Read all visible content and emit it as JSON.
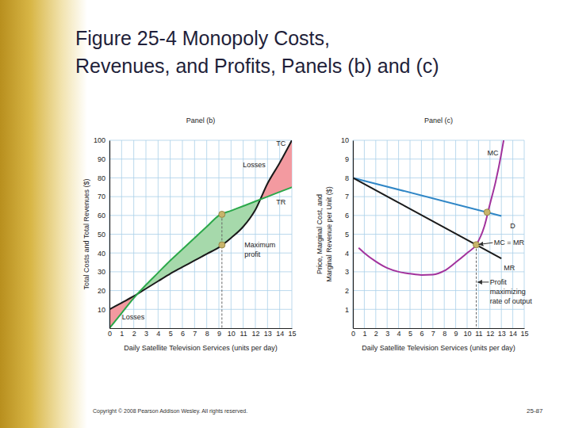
{
  "slide": {
    "title": [
      "Figure 25-4  Monopoly Costs,",
      "Revenues, and Profits, Panels (b) and (c)"
    ],
    "copyright": "Copyright © 2008 Pearson Addison Wesley. All rights reserved.",
    "page": "25-87"
  },
  "chart_data": [
    {
      "type": "area",
      "title": "Panel (b)",
      "xlabel": "Daily Satellite Television Services (units per day)",
      "ylabel": [
        "Total Costs and Total Revenues ($)"
      ],
      "x": [
        0,
        1,
        2,
        3,
        4,
        5,
        6,
        7,
        8,
        9,
        10,
        11,
        12,
        13,
        14,
        15
      ],
      "xlim": [
        0,
        15
      ],
      "xticks": [
        0,
        1,
        2,
        3,
        4,
        5,
        6,
        7,
        8,
        9,
        10,
        11,
        12,
        13,
        14,
        15
      ],
      "ylim": [
        0,
        100
      ],
      "yticks": [
        10,
        20,
        30,
        40,
        50,
        60,
        70,
        80,
        90,
        100
      ],
      "grid": true,
      "series": [
        {
          "name": "TC",
          "color": "#1a1a1a",
          "values": [
            10,
            13.5,
            17,
            21,
            25,
            29,
            32.5,
            36,
            39.5,
            43,
            48,
            54,
            63,
            77,
            88,
            100
          ]
        },
        {
          "name": "TR",
          "color": "#2ba84a",
          "values": [
            0,
            8,
            16,
            23,
            29.5,
            36,
            42,
            48,
            54,
            60,
            62.5,
            65,
            67.5,
            70,
            72.5,
            75
          ]
        }
      ],
      "highlight_points": {
        "x": [
          9.25,
          9.25
        ],
        "values": [
          60.6,
          44.3
        ],
        "color": "#c8b46a"
      },
      "annotations": [
        {
          "lines": [
            "Losses"
          ]
        },
        {
          "lines": [
            "Maximum",
            "profit"
          ]
        },
        {
          "lines": [
            "Losses"
          ]
        }
      ]
    },
    {
      "type": "line",
      "title": "Panel (c)",
      "xlabel": "Daily Satellite Television Services (units per day)",
      "ylabel": [
        "Price, Marginal Cost, and",
        "Marginal Revenue per Unit ($)"
      ],
      "xlim": [
        0,
        15
      ],
      "xticks": [
        0,
        1,
        2,
        3,
        4,
        5,
        6,
        7,
        8,
        9,
        10,
        11,
        12,
        13,
        14,
        15
      ],
      "ylim": [
        0,
        10
      ],
      "yticks": [
        1,
        2,
        3,
        4,
        5,
        6,
        7,
        8,
        9,
        10
      ],
      "grid": true,
      "series": [
        {
          "name": "D",
          "color": "#2f86c6",
          "x": [
            0,
            13
          ],
          "values": [
            8,
            5.97
          ]
        },
        {
          "name": "MR",
          "color": "#1a1a1a",
          "x": [
            0,
            13
          ],
          "values": [
            8,
            3.71
          ]
        },
        {
          "name": "MC",
          "color": "#a2329c",
          "x": [
            0.5,
            1,
            2,
            3,
            4,
            5,
            6,
            7,
            8,
            9,
            10,
            10.8,
            11.5,
            12,
            12.5,
            13,
            13.2
          ],
          "values": [
            4.27,
            4,
            3.55,
            3.2,
            3,
            2.9,
            2.83,
            2.85,
            3.05,
            3.5,
            4,
            4.44,
            5.4,
            6.6,
            7.8,
            9.3,
            10
          ]
        }
      ],
      "highlight_points": {
        "x": [
          10.8,
          11.75
        ],
        "values": [
          4.44,
          6.17
        ],
        "color": "#c8b46a"
      },
      "annotations": [
        {
          "lines": [
            "MC = MR"
          ]
        },
        {
          "lines": [
            "Profit",
            "maximizing",
            "rate of output"
          ]
        }
      ]
    }
  ]
}
